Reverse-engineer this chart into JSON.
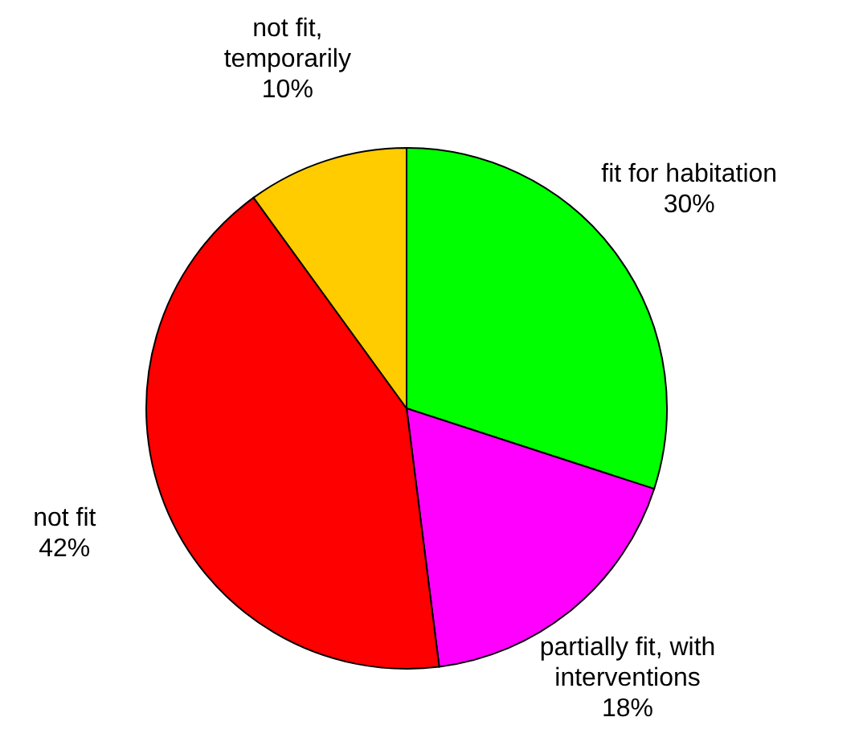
{
  "chart_data": {
    "type": "pie",
    "categories": [
      "fit for habitation",
      "partially fit, with interventions",
      "not fit",
      "not fit, temporarily"
    ],
    "values": [
      30,
      18,
      42,
      10
    ],
    "value_labels": [
      "30%",
      "18%",
      "42%",
      "10%"
    ],
    "colors": [
      "#00ff00",
      "#ff00ff",
      "#ff0000",
      "#ffcc00"
    ],
    "legend": false
  }
}
